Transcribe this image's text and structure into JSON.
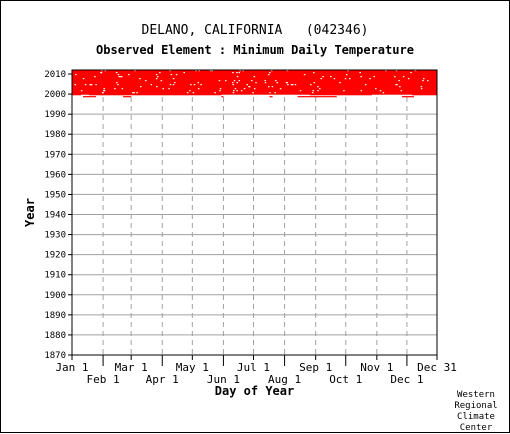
{
  "header": {
    "title": "DELANO, CALIFORNIA   (042346)",
    "subtitle": "Observed Element : Minimum Daily Temperature"
  },
  "credit": [
    "Western",
    "Regional",
    "Climate",
    "Center"
  ],
  "chart_data": {
    "type": "scatter",
    "title": "DELANO, CALIFORNIA   (042346)",
    "subtitle": "Observed Element : Minimum Daily Temperature",
    "xlabel": "Day of Year",
    "ylabel": "Year",
    "xlim": [
      1,
      365
    ],
    "ylim": [
      1870,
      2012
    ],
    "grid": true,
    "x_ticks_upper": [
      {
        "label": "Jan 1",
        "day": 1
      },
      {
        "label": "Mar 1",
        "day": 60
      },
      {
        "label": "May 1",
        "day": 121
      },
      {
        "label": "Jul 1",
        "day": 182
      },
      {
        "label": "Sep 1",
        "day": 244
      },
      {
        "label": "Nov 1",
        "day": 305
      },
      {
        "label": "Dec 31",
        "day": 365
      }
    ],
    "x_ticks_lower": [
      {
        "label": "Feb 1",
        "day": 32
      },
      {
        "label": "Apr 1",
        "day": 91
      },
      {
        "label": "Jun 1",
        "day": 152
      },
      {
        "label": "Aug 1",
        "day": 213
      },
      {
        "label": "Oct 1",
        "day": 274
      },
      {
        "label": "Dec 1",
        "day": 335
      }
    ],
    "y_ticks": [
      2010,
      2000,
      1990,
      1980,
      1970,
      1960,
      1950,
      1940,
      1930,
      1920,
      1910,
      1900,
      1890,
      1880,
      1870
    ],
    "series": [
      {
        "color": "#ff0000",
        "description_of_coverage": "observations recorded on nearly every day of year",
        "year_start": 1998,
        "year_end": 2011,
        "gaps": [
          {
            "year": 1998,
            "day_start": 1,
            "day_end": 365,
            "observed_segments": [
              [
                12,
                25
              ],
              [
                52,
                60
              ],
              [
                150,
                152
              ],
              [
                198,
                201
              ],
              [
                226,
                265
              ],
              [
                330,
                342
              ]
            ]
          },
          {
            "year": 1999,
            "day_start": 1,
            "day_end": 365,
            "observed_segments": [
              [
                1,
                10
              ],
              [
                18,
                60
              ],
              [
                60,
                150
              ],
              [
                238,
                300
              ],
              [
                340,
                365
              ]
            ]
          }
        ]
      }
    ]
  },
  "colors": {
    "data": "#ff0000",
    "grid": "#a0a0a0",
    "axis": "#000000",
    "background": "#ffffff"
  }
}
